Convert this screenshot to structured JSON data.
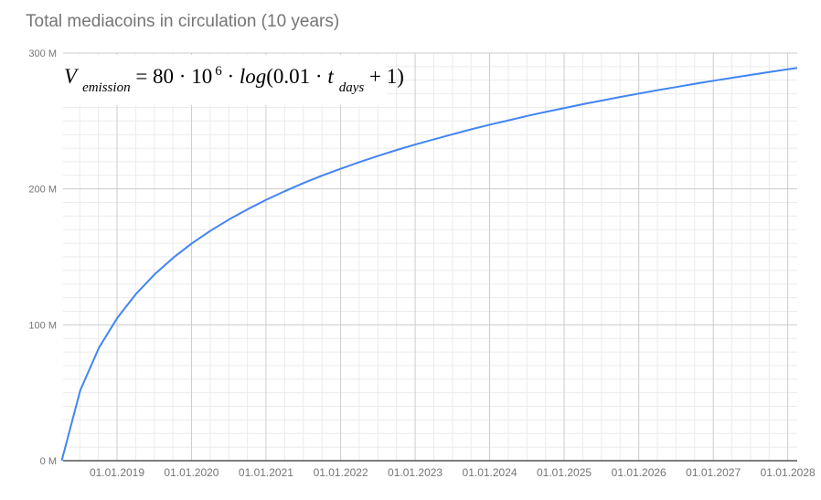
{
  "chart_data": {
    "type": "line",
    "title": "Total mediacoins in circulation (10 years)",
    "xlabel": "",
    "ylabel": "",
    "ylim": [
      0,
      300
    ],
    "y_unit": "M",
    "y_ticks": [
      "0 M",
      "100 M",
      "200 M",
      "300 M"
    ],
    "y_tick_values": [
      0,
      100,
      200,
      300
    ],
    "x_tick_labels": [
      "01.01.2019",
      "01.01.2020",
      "01.01.2021",
      "01.01.2022",
      "01.01.2023",
      "01.01.2024",
      "01.01.2025",
      "01.01.2026",
      "01.01.2027",
      "01.01.2028"
    ],
    "x_tick_days": [
      271,
      636,
      1001,
      1367,
      1732,
      2097,
      2462,
      2828,
      3193,
      3558
    ],
    "grid": true,
    "legend": "none",
    "annotation": {
      "formula_parts": {
        "V": "V",
        "V_sub": "emission",
        "eq": "= 80 · 10",
        "exp": "6",
        "mid": " · ",
        "log": "log",
        "arg": "(0.01 · ",
        "t": "t",
        "t_sub": "days",
        "end": " + 1)"
      }
    },
    "series": [
      {
        "name": "Total mediacoins",
        "color": "#4285f4",
        "x_days": [
          0,
          91,
          183,
          274,
          365,
          457,
          548,
          639,
          730,
          822,
          913,
          1004,
          1096,
          1187,
          1278,
          1369,
          1461,
          1552,
          1643,
          1735,
          1826,
          1917,
          2008,
          2100,
          2191,
          2282,
          2373,
          2465,
          2556,
          2647,
          2739,
          2830,
          2921,
          3012,
          3104,
          3195,
          3286,
          3378,
          3469,
          3560,
          3604
        ],
        "values": [
          0,
          51.8,
          83.2,
          105.5,
          122.9,
          137.4,
          149.5,
          160.0,
          169.3,
          177.7,
          185.2,
          192.1,
          198.5,
          204.4,
          209.9,
          215.0,
          219.8,
          224.4,
          228.7,
          232.8,
          236.6,
          240.3,
          243.9,
          247.3,
          250.5,
          253.7,
          256.7,
          259.6,
          262.4,
          265.0,
          267.7,
          270.2,
          272.7,
          275.0,
          277.4,
          279.6,
          281.8,
          283.9,
          286.0,
          288.0,
          289.0
        ]
      }
    ]
  },
  "colors": {
    "line": "#4285f4",
    "major_grid": "#cccccc",
    "minor_grid": "#ebebeb",
    "axis": "#333333",
    "text": "#757575"
  }
}
